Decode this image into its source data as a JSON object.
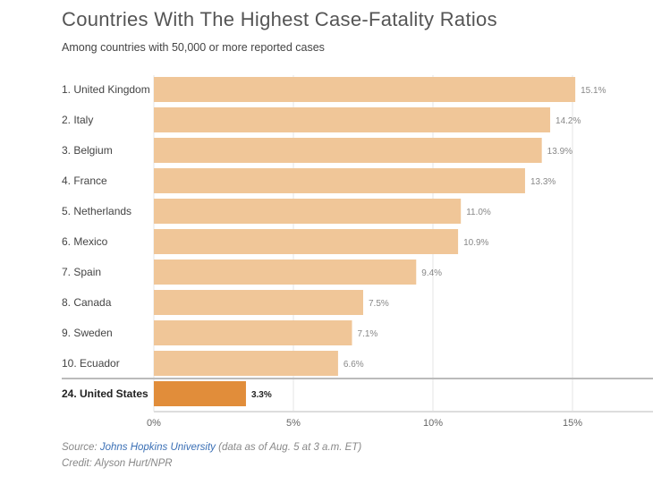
{
  "chart_data": {
    "type": "bar",
    "orientation": "horizontal",
    "title": "Countries With The Highest Case-Fatality Ratios",
    "subtitle": "Among countries with 50,000 or more reported cases",
    "categories": [
      "1. United Kingdom",
      "2. Italy",
      "3. Belgium",
      "4. France",
      "5. Netherlands",
      "6. Mexico",
      "7. Spain",
      "8. Canada",
      "9. Sweden",
      "10. Ecuador",
      "24. United States"
    ],
    "values": [
      15.1,
      14.2,
      13.9,
      13.3,
      11.0,
      10.9,
      9.4,
      7.5,
      7.1,
      6.6,
      3.3
    ],
    "value_labels": [
      "15.1%",
      "14.2%",
      "13.9%",
      "13.3%",
      "11.0%",
      "10.9%",
      "9.4%",
      "7.5%",
      "7.1%",
      "6.6%",
      "3.3%"
    ],
    "highlight_index": 10,
    "xlim": [
      0,
      18.6
    ],
    "xticks": [
      0,
      5,
      10,
      15
    ],
    "xtick_labels": [
      "0%",
      "5%",
      "10%",
      "15%"
    ],
    "grid": true,
    "colors": {
      "bar": "#f0c698",
      "highlight": "#e18d3a"
    }
  },
  "footer": {
    "source_prefix": "Source: ",
    "source_link": "Johns Hopkins University",
    "source_suffix": " (data as of Aug. 5 at 3 a.m. ET)",
    "credit": "Credit: Alyson Hurt/NPR"
  }
}
